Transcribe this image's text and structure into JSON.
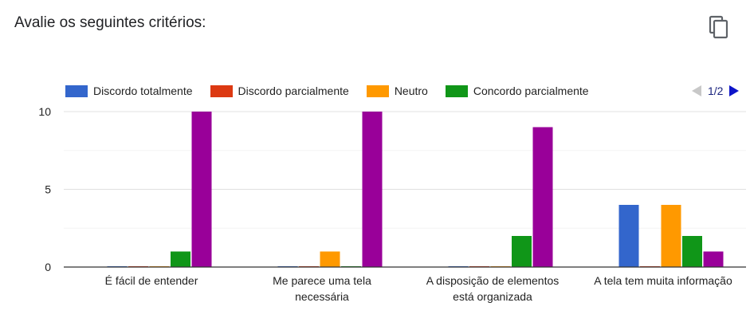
{
  "header": {
    "title": "Avalie os seguintes critérios:",
    "copy_icon": "copy-icon"
  },
  "legend": {
    "items": [
      {
        "label": "Discordo totalmente",
        "color": "#3366cc"
      },
      {
        "label": "Discordo parcialmente",
        "color": "#dc3912"
      },
      {
        "label": "Neutro",
        "color": "#ff9900"
      },
      {
        "label": "Concordo parcialmente",
        "color": "#109618"
      }
    ],
    "page_indicator": "1/2"
  },
  "chart_data": {
    "type": "bar",
    "categories": [
      [
        "É fácil de entender"
      ],
      [
        "Me parece uma tela",
        "necessária"
      ],
      [
        "A disposição de elementos",
        "está organizada"
      ],
      [
        "A tela tem muita informação"
      ]
    ],
    "series": [
      {
        "name": "Discordo totalmente",
        "color": "#3366cc",
        "values": [
          0,
          0,
          0,
          4
        ]
      },
      {
        "name": "Discordo parcialmente",
        "color": "#dc3912",
        "values": [
          0,
          0,
          0,
          0
        ]
      },
      {
        "name": "Neutro",
        "color": "#ff9900",
        "values": [
          0,
          1,
          0,
          4
        ]
      },
      {
        "name": "Concordo parcialmente",
        "color": "#109618",
        "values": [
          1,
          0,
          2,
          2
        ]
      },
      {
        "color": "#990099",
        "values": [
          10,
          10,
          9,
          1
        ]
      }
    ],
    "yticks": [
      0,
      5,
      10
    ],
    "ylim": [
      0,
      10
    ],
    "grid": true,
    "legend_position": "top"
  }
}
